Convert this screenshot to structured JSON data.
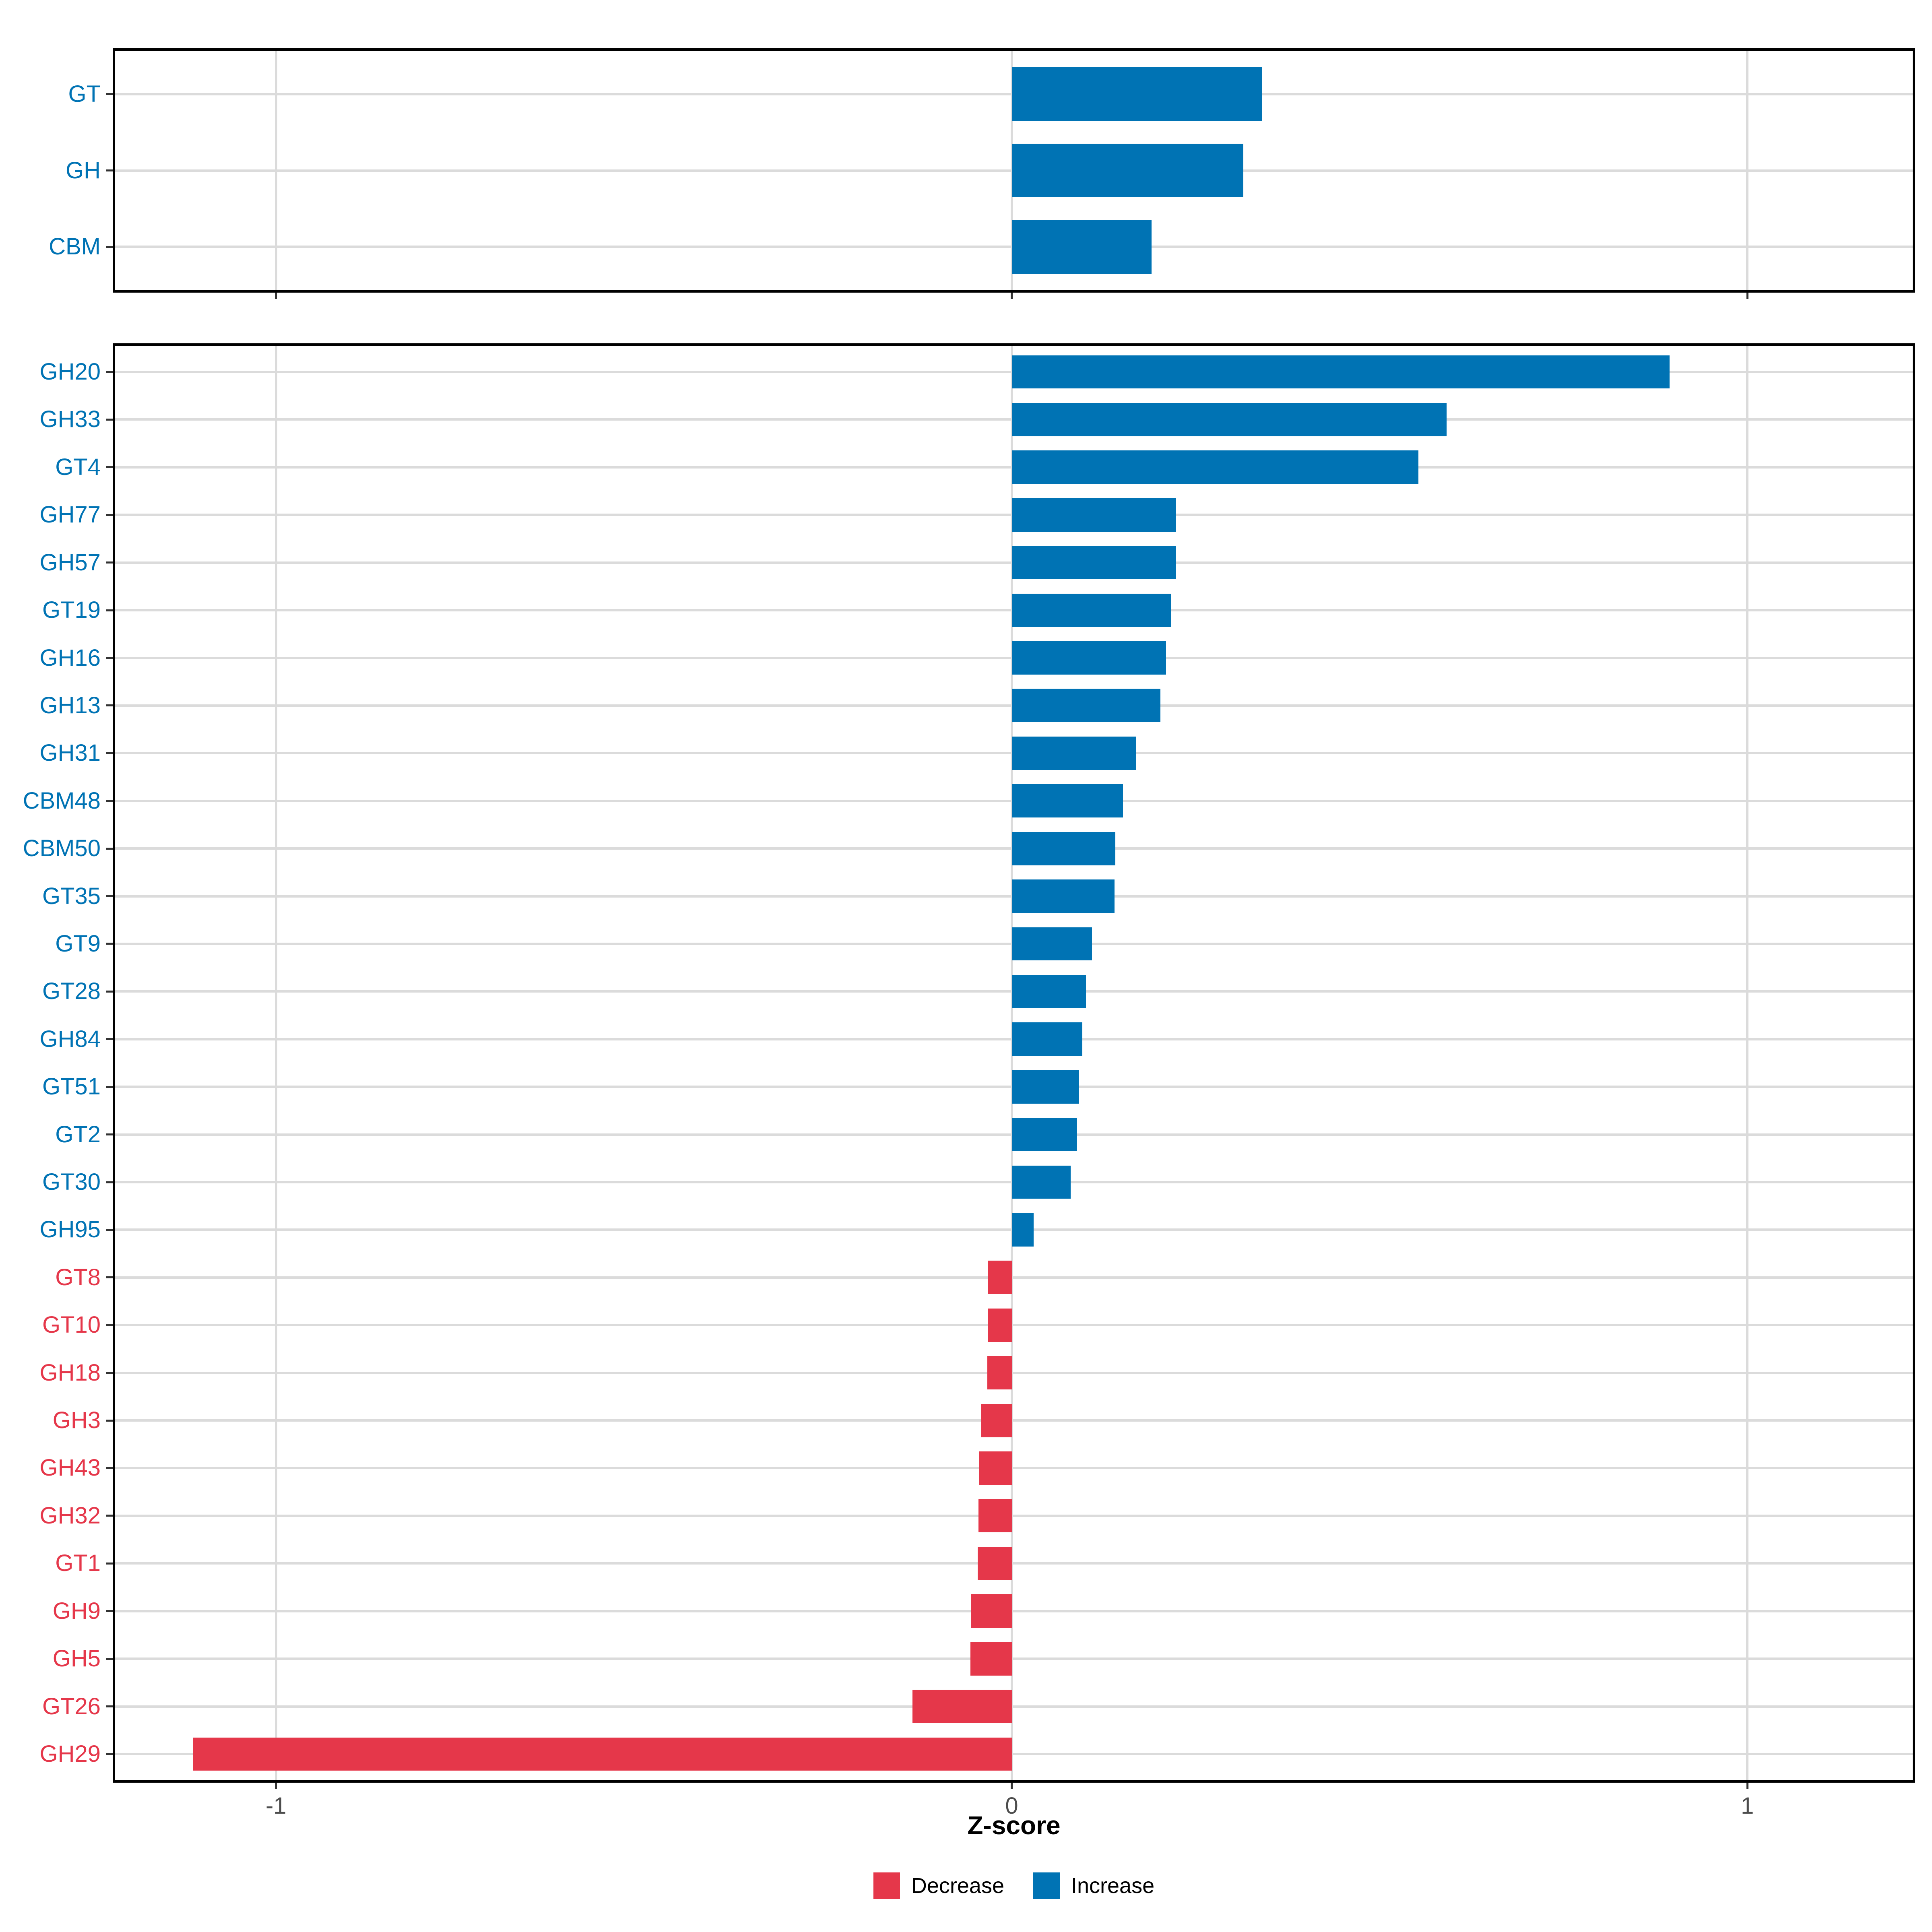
{
  "chart_data": [
    {
      "type": "bar",
      "orientation": "horizontal",
      "panel": "enzyme-classes",
      "categories": [
        "GT",
        "GH",
        "CBM"
      ],
      "values": [
        0.34,
        0.315,
        0.19
      ],
      "directions": [
        "Increase",
        "Increase",
        "Increase"
      ]
    },
    {
      "type": "bar",
      "orientation": "horizontal",
      "panel": "cazyme-families",
      "categories": [
        "GH20",
        "GH33",
        "GT4",
        "GH77",
        "GH57",
        "GT19",
        "GH16",
        "GH13",
        "GH31",
        "CBM48",
        "CBM50",
        "GT35",
        "GT9",
        "GT28",
        "GH84",
        "GT51",
        "GT2",
        "GT30",
        "GH95",
        "GT8",
        "GT10",
        "GH18",
        "GH3",
        "GH43",
        "GH32",
        "GT1",
        "GH9",
        "GH5",
        "GT26",
        "GH29"
      ],
      "values": [
        0.894,
        0.591,
        0.553,
        0.223,
        0.223,
        0.217,
        0.21,
        0.202,
        0.169,
        0.151,
        0.141,
        0.14,
        0.109,
        0.101,
        0.096,
        0.091,
        0.089,
        0.08,
        0.03,
        -0.032,
        -0.032,
        -0.033,
        -0.042,
        -0.044,
        -0.045,
        -0.046,
        -0.055,
        -0.056,
        -0.135,
        -1.113
      ],
      "directions": [
        "Increase",
        "Increase",
        "Increase",
        "Increase",
        "Increase",
        "Increase",
        "Increase",
        "Increase",
        "Increase",
        "Increase",
        "Increase",
        "Increase",
        "Increase",
        "Increase",
        "Increase",
        "Increase",
        "Increase",
        "Increase",
        "Increase",
        "Decrease",
        "Decrease",
        "Decrease",
        "Decrease",
        "Decrease",
        "Decrease",
        "Decrease",
        "Decrease",
        "Decrease",
        "Decrease",
        "Decrease"
      ]
    }
  ],
  "axis": {
    "xlabel": "Z-score",
    "xlim": [
      -1.222,
      1.228
    ],
    "x_ticks": [
      {
        "value": -1,
        "label": "-1"
      },
      {
        "value": 0,
        "label": "0"
      },
      {
        "value": 1,
        "label": "1"
      }
    ]
  },
  "legend": {
    "items": [
      {
        "label": "Decrease",
        "direction": "Decrease",
        "color": "#E5374A"
      },
      {
        "label": "Increase",
        "direction": "Increase",
        "color": "#0073B4"
      }
    ]
  },
  "colors": {
    "increase": "#0073B4",
    "decrease": "#E5374A",
    "grid": "#DBDBDB",
    "tick": "#333333",
    "axis_text": "#4D4D4D",
    "panel_border": "#000000",
    "background": "#FFFFFF"
  }
}
